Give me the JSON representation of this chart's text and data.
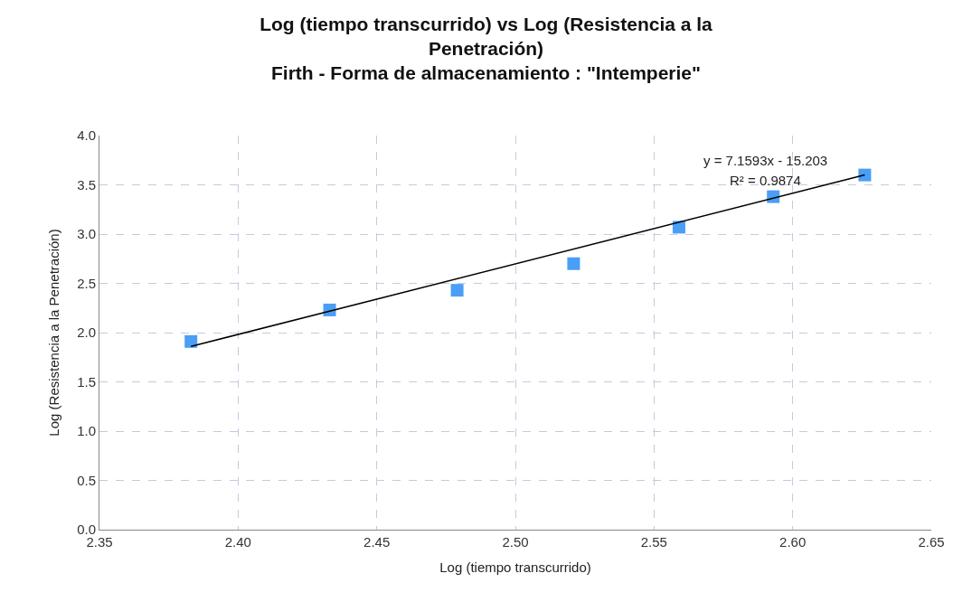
{
  "chart_data": {
    "type": "scatter",
    "title": "Log (tiempo transcurrido) vs Log (Resistencia a la\nPenetración)\nFirth - Forma de almacenamiento : \"Intemperie\"",
    "xlabel": "Log (tiempo transcurrido)",
    "ylabel": "Log (Resistencia a la Penetración)",
    "x": [
      2.383,
      2.433,
      2.479,
      2.521,
      2.559,
      2.593,
      2.626
    ],
    "series": [
      {
        "color": "#4a9ef5",
        "values": [
          1.91,
          2.23,
          2.43,
          2.7,
          3.07,
          3.38,
          3.6
        ],
        "marker": "square"
      },
      {
        "type": "line",
        "color": "#000000",
        "x": [
          2.383,
          2.626
        ],
        "values": [
          1.86,
          3.6
        ],
        "marker": "none",
        "line_style": "solid"
      }
    ],
    "xlim": [
      2.35,
      2.65
    ],
    "xticks": [
      {
        "value": 2.35,
        "label": "2.35"
      },
      {
        "value": 2.4,
        "label": "2.40"
      },
      {
        "value": 2.45,
        "label": "2.45"
      },
      {
        "value": 2.5,
        "label": "2.50"
      },
      {
        "value": 2.55,
        "label": "2.55"
      },
      {
        "value": 2.6,
        "label": "2.60"
      },
      {
        "value": 2.65,
        "label": "2.65"
      }
    ],
    "ylim": [
      0,
      4
    ],
    "yticks": [
      {
        "value": 0,
        "label": "0.0"
      },
      {
        "value": 0.5,
        "label": "0.5"
      },
      {
        "value": 1,
        "label": "1.0"
      },
      {
        "value": 1.5,
        "label": "1.5"
      },
      {
        "value": 2,
        "label": "2.0"
      },
      {
        "value": 2.5,
        "label": "2.5"
      },
      {
        "value": 3,
        "label": "3.0"
      },
      {
        "value": 3.5,
        "label": "3.5"
      },
      {
        "value": 4,
        "label": "4.0"
      }
    ],
    "annotations": [
      "y = 7.1593x - 15.203",
      "R² = 0.9874"
    ],
    "grid": true
  }
}
